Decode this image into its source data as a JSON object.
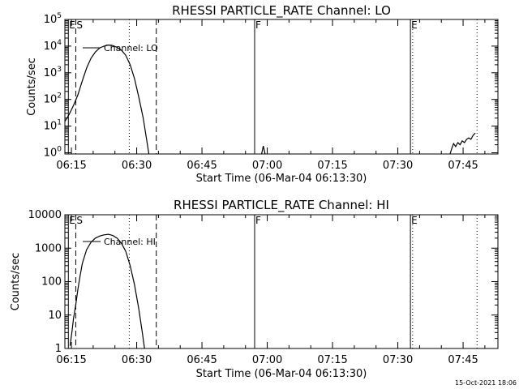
{
  "footer": {
    "timestamp": "15-Oct-2021 18:06"
  },
  "chart_data": [
    {
      "type": "line",
      "title": "RHESSI PARTICLE_RATE Channel: LO",
      "xlabel": "Start Time (06-Mar-04 06:13:30)",
      "ylabel": "Counts/sec",
      "y_scale": "log",
      "xlim_minutes": [
        0,
        99.5
      ],
      "ylim": [
        0.9,
        100000
      ],
      "x_ticks": [
        {
          "m": 1.5,
          "label": "06:15"
        },
        {
          "m": 16.5,
          "label": "06:30"
        },
        {
          "m": 31.5,
          "label": "06:45"
        },
        {
          "m": 46.5,
          "label": "07:00"
        },
        {
          "m": 61.5,
          "label": "07:15"
        },
        {
          "m": 76.5,
          "label": "07:30"
        },
        {
          "m": 91.5,
          "label": "07:45"
        }
      ],
      "y_ticks": [
        {
          "v": 1,
          "base": "10",
          "exp": "0"
        },
        {
          "v": 10,
          "base": "10",
          "exp": "1"
        },
        {
          "v": 100,
          "base": "10",
          "exp": "2"
        },
        {
          "v": 1000,
          "base": "10",
          "exp": "3"
        },
        {
          "v": 10000,
          "base": "10",
          "exp": "4"
        },
        {
          "v": 100000,
          "base": "10",
          "exp": "5"
        }
      ],
      "legend": "Channel: LO",
      "event_lines": [
        {
          "m": 0.8,
          "style": "solid",
          "label": "E"
        },
        {
          "m": 2.5,
          "style": "dashed",
          "label": "S"
        },
        {
          "m": 14.8,
          "style": "dotted",
          "label": ""
        },
        {
          "m": 21.0,
          "style": "dashed",
          "label": ""
        },
        {
          "m": 43.6,
          "style": "solid",
          "label": "F"
        },
        {
          "m": 79.4,
          "style": "solid",
          "label": "E"
        },
        {
          "m": 79.9,
          "style": "dotted",
          "label": ""
        },
        {
          "m": 94.7,
          "style": "dotted",
          "label": ""
        }
      ],
      "series": [
        {
          "points": [
            {
              "x": 0.0,
              "y": 15
            },
            {
              "x": 1.0,
              "y": 28
            },
            {
              "x": 2.0,
              "y": 60
            },
            {
              "x": 3.0,
              "y": 150
            },
            {
              "x": 4.0,
              "y": 500
            },
            {
              "x": 5.0,
              "y": 1500
            },
            {
              "x": 6.0,
              "y": 3500
            },
            {
              "x": 7.0,
              "y": 6000
            },
            {
              "x": 8.0,
              "y": 8500
            },
            {
              "x": 9.0,
              "y": 10000
            },
            {
              "x": 10.0,
              "y": 11000
            },
            {
              "x": 11.0,
              "y": 10500
            },
            {
              "x": 12.0,
              "y": 9000
            },
            {
              "x": 13.0,
              "y": 7000
            },
            {
              "x": 14.0,
              "y": 4500
            },
            {
              "x": 15.0,
              "y": 2000
            },
            {
              "x": 16.0,
              "y": 600
            },
            {
              "x": 17.0,
              "y": 120
            },
            {
              "x": 18.0,
              "y": 20
            },
            {
              "x": 18.8,
              "y": 3
            },
            {
              "x": 19.3,
              "y": 0.9
            }
          ]
        },
        {
          "points": [
            {
              "x": 45.2,
              "y": 0.9
            },
            {
              "x": 45.6,
              "y": 1.8
            },
            {
              "x": 46.0,
              "y": 0.9
            }
          ]
        },
        {
          "points": [
            {
              "x": 88.5,
              "y": 0.9
            },
            {
              "x": 88.8,
              "y": 1.3
            },
            {
              "x": 89.3,
              "y": 2.2
            },
            {
              "x": 89.8,
              "y": 1.7
            },
            {
              "x": 90.3,
              "y": 2.4
            },
            {
              "x": 90.8,
              "y": 2.0
            },
            {
              "x": 91.3,
              "y": 2.8
            },
            {
              "x": 91.8,
              "y": 2.4
            },
            {
              "x": 92.3,
              "y": 3.2
            },
            {
              "x": 92.8,
              "y": 3.6
            },
            {
              "x": 93.3,
              "y": 3.2
            },
            {
              "x": 93.8,
              "y": 4.5
            },
            {
              "x": 94.3,
              "y": 5.5
            }
          ]
        }
      ]
    },
    {
      "type": "line",
      "title": "RHESSI PARTICLE_RATE Channel: HI",
      "xlabel": "Start Time (06-Mar-04 06:13:30)",
      "ylabel": "Counts/sec",
      "y_scale": "log",
      "xlim_minutes": [
        0,
        99.5
      ],
      "ylim": [
        1,
        10000
      ],
      "x_ticks": [
        {
          "m": 1.5,
          "label": "06:15"
        },
        {
          "m": 16.5,
          "label": "06:30"
        },
        {
          "m": 31.5,
          "label": "06:45"
        },
        {
          "m": 46.5,
          "label": "07:00"
        },
        {
          "m": 61.5,
          "label": "07:15"
        },
        {
          "m": 76.5,
          "label": "07:30"
        },
        {
          "m": 91.5,
          "label": "07:45"
        }
      ],
      "y_ticks": [
        {
          "v": 1,
          "label": "1"
        },
        {
          "v": 10,
          "label": "10"
        },
        {
          "v": 100,
          "label": "100"
        },
        {
          "v": 1000,
          "label": "1000"
        },
        {
          "v": 10000,
          "label": "10000"
        }
      ],
      "legend": "Channel: HI",
      "event_lines": [
        {
          "m": 0.8,
          "style": "solid",
          "label": "E"
        },
        {
          "m": 2.5,
          "style": "dashed",
          "label": "S"
        },
        {
          "m": 14.8,
          "style": "dotted",
          "label": ""
        },
        {
          "m": 21.0,
          "style": "dashed",
          "label": ""
        },
        {
          "m": 43.6,
          "style": "solid",
          "label": "F"
        },
        {
          "m": 79.4,
          "style": "solid",
          "label": "E"
        },
        {
          "m": 79.9,
          "style": "dotted",
          "label": ""
        },
        {
          "m": 94.7,
          "style": "dotted",
          "label": ""
        }
      ],
      "series": [
        {
          "points": [
            {
              "x": 1.2,
              "y": 1.2
            },
            {
              "x": 1.6,
              "y": 3
            },
            {
              "x": 2.0,
              "y": 8
            },
            {
              "x": 2.5,
              "y": 20
            },
            {
              "x": 3.0,
              "y": 60
            },
            {
              "x": 3.5,
              "y": 150
            },
            {
              "x": 4.0,
              "y": 350
            },
            {
              "x": 5.0,
              "y": 900
            },
            {
              "x": 6.0,
              "y": 1500
            },
            {
              "x": 7.0,
              "y": 2000
            },
            {
              "x": 8.0,
              "y": 2300
            },
            {
              "x": 9.0,
              "y": 2500
            },
            {
              "x": 10.0,
              "y": 2600
            },
            {
              "x": 11.0,
              "y": 2400
            },
            {
              "x": 12.0,
              "y": 2000
            },
            {
              "x": 13.0,
              "y": 1400
            },
            {
              "x": 14.0,
              "y": 800
            },
            {
              "x": 15.0,
              "y": 300
            },
            {
              "x": 16.0,
              "y": 80
            },
            {
              "x": 17.0,
              "y": 15
            },
            {
              "x": 17.8,
              "y": 3
            },
            {
              "x": 18.3,
              "y": 1
            }
          ]
        }
      ]
    }
  ]
}
